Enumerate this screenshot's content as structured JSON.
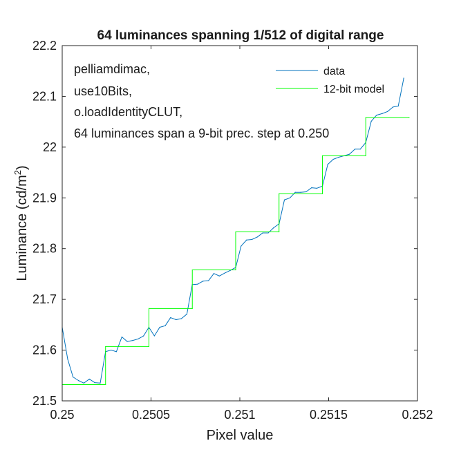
{
  "chart_data": {
    "type": "line",
    "title": "64 luminances spanning 1/512 of digital range",
    "xlabel": "Pixel value",
    "ylabel": "Luminance (cd/m",
    "ylabel_sup": "2",
    "ylabel_end": ")",
    "xlim": [
      0.25,
      0.252
    ],
    "ylim": [
      21.5,
      22.2
    ],
    "xticks": [
      0.25,
      0.2505,
      0.251,
      0.2515,
      0.252
    ],
    "xtick_labels": [
      "0.25",
      "0.2505",
      "0.251",
      "0.2515",
      "0.252"
    ],
    "yticks": [
      21.5,
      21.6,
      21.7,
      21.8,
      21.9,
      22.0,
      22.1,
      22.2
    ],
    "ytick_labels": [
      "21.5",
      "21.6",
      "21.7",
      "21.8",
      "21.9",
      "22",
      "22.1",
      "22.2"
    ],
    "grid": false,
    "annotations": [
      "pelliamdimac,",
      "use10Bits,",
      "o.loadIdentityCLUT,",
      "64 luminances span a 9-bit prec. step at 0.250"
    ],
    "legend_position": "top-right",
    "series": [
      {
        "name": "data",
        "color": "#0072BD",
        "x": [
          0.25,
          0.250031,
          0.250061,
          0.250092,
          0.250122,
          0.250153,
          0.250183,
          0.250214,
          0.250244,
          0.250275,
          0.250305,
          0.250336,
          0.250366,
          0.250397,
          0.250427,
          0.250458,
          0.250488,
          0.250519,
          0.250549,
          0.25058,
          0.25061,
          0.250641,
          0.250671,
          0.250702,
          0.250732,
          0.250763,
          0.250793,
          0.250824,
          0.250854,
          0.250885,
          0.250916,
          0.250946,
          0.250977,
          0.251007,
          0.251038,
          0.251068,
          0.251099,
          0.251129,
          0.25116,
          0.25119,
          0.251221,
          0.251251,
          0.251282,
          0.251312,
          0.251343,
          0.251373,
          0.251404,
          0.251434,
          0.251465,
          0.251495,
          0.251526,
          0.251556,
          0.251587,
          0.251617,
          0.251648,
          0.251678,
          0.251709,
          0.25174,
          0.25177,
          0.251801,
          0.251831,
          0.251862,
          0.251892,
          0.251923
        ],
        "y": [
          21.645,
          21.582,
          21.547,
          21.54,
          21.535,
          21.543,
          21.536,
          21.535,
          21.597,
          21.6,
          21.597,
          21.626,
          21.617,
          21.619,
          21.622,
          21.628,
          21.645,
          21.628,
          21.645,
          21.648,
          21.664,
          21.66,
          21.662,
          21.671,
          21.729,
          21.73,
          21.736,
          21.737,
          21.751,
          21.746,
          21.752,
          21.757,
          21.763,
          21.805,
          21.817,
          21.818,
          21.823,
          21.831,
          21.831,
          21.841,
          21.849,
          21.896,
          21.9,
          21.911,
          21.911,
          21.912,
          21.92,
          21.919,
          21.923,
          21.966,
          21.976,
          21.98,
          21.983,
          21.986,
          21.996,
          21.996,
          22.009,
          22.051,
          22.063,
          22.066,
          22.07,
          22.079,
          22.081,
          22.136
        ]
      },
      {
        "name": "12-bit model",
        "color": "#00FF00",
        "step": true,
        "x": [
          0.25,
          0.2502441,
          0.2502441,
          0.2504883,
          0.2504883,
          0.2507324,
          0.2507324,
          0.2509766,
          0.2509766,
          0.2512207,
          0.2512207,
          0.2514648,
          0.2514648,
          0.251709,
          0.251709,
          0.2519531
        ],
        "y": [
          21.532,
          21.532,
          21.607,
          21.607,
          21.682,
          21.682,
          21.758,
          21.758,
          21.833,
          21.833,
          21.908,
          21.908,
          21.983,
          21.983,
          22.058,
          22.058
        ]
      }
    ]
  }
}
